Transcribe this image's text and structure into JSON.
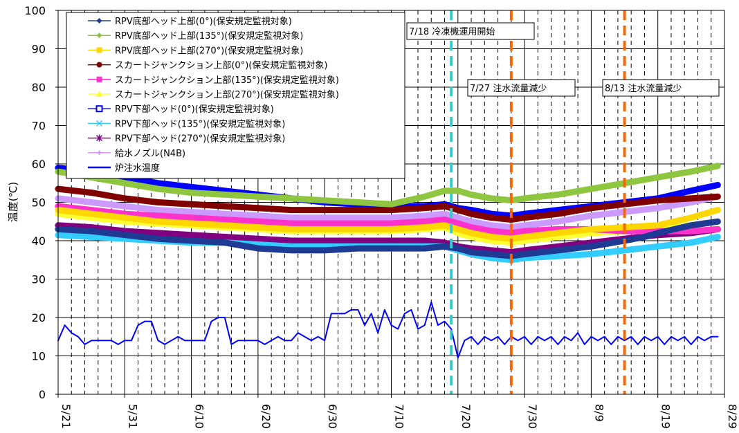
{
  "chart_data": {
    "type": "line",
    "ylabel": "温度(℃)",
    "xlabel": "",
    "title": "",
    "ylim": [
      0,
      100
    ],
    "y_ticks": [
      0,
      10,
      20,
      30,
      40,
      50,
      60,
      70,
      80,
      90,
      100
    ],
    "x_start": "5/21",
    "x_ticks": [
      "5/21",
      "5/31",
      "6/10",
      "6/20",
      "6/30",
      "7/10",
      "7/20",
      "7/30",
      "8/9",
      "8/19",
      "8/29"
    ],
    "x_tick_days": [
      0,
      10,
      20,
      30,
      40,
      50,
      60,
      70,
      80,
      90,
      100
    ],
    "grid": {
      "major_y": true,
      "major_x": true,
      "minor_x_dashed": true
    },
    "legend_position": "top-left",
    "series": [
      {
        "name": "RPV底部ヘッド上部(0°)(保安規定監視対象)",
        "color": "#1f3a93",
        "marker": "diamond",
        "x": [
          0,
          5,
          10,
          15,
          20,
          25,
          30,
          35,
          40,
          45,
          50,
          55,
          58,
          60,
          62,
          65,
          68,
          70,
          75,
          80,
          85,
          88,
          90,
          95,
          99
        ],
        "y": [
          43,
          42.5,
          41.5,
          40.5,
          40,
          39.5,
          38,
          37.5,
          37.5,
          38,
          38,
          38,
          38.5,
          38,
          37,
          36.5,
          36,
          36.5,
          37.5,
          38.5,
          40,
          41,
          42,
          44,
          45
        ]
      },
      {
        "name": "RPV底部ヘッド上部(135°)(保安規定監視対象)",
        "color": "#8ec63f",
        "marker": "diamond",
        "x": [
          0,
          5,
          10,
          15,
          20,
          25,
          30,
          35,
          40,
          45,
          50,
          55,
          58,
          60,
          62,
          65,
          68,
          70,
          75,
          80,
          85,
          90,
          95,
          99
        ],
        "y": [
          58,
          56.5,
          55,
          53.5,
          52.5,
          52,
          51.5,
          51,
          50.5,
          50,
          49.5,
          51.5,
          53,
          53,
          52,
          51,
          50.5,
          51,
          52,
          53.5,
          55,
          56.5,
          58,
          59.5
        ]
      },
      {
        "name": "RPV底部ヘッド上部(270°)(保安規定監視対象)",
        "color": "#ffd700",
        "marker": "square",
        "x": [
          0,
          5,
          10,
          15,
          20,
          25,
          30,
          35,
          40,
          45,
          50,
          55,
          58,
          60,
          62,
          65,
          68,
          70,
          75,
          80,
          85,
          90,
          95,
          99
        ],
        "y": [
          48,
          47,
          46,
          45,
          44.5,
          44,
          43.5,
          43,
          43,
          43,
          43,
          43.5,
          44,
          43,
          42,
          41,
          40.5,
          41,
          42,
          43,
          43.5,
          44,
          46,
          48
        ]
      },
      {
        "name": "スカートジャンクション上部(0°)(保安規定監視対象)",
        "color": "#800000",
        "marker": "circle",
        "x": [
          0,
          5,
          10,
          15,
          20,
          25,
          30,
          35,
          40,
          45,
          50,
          55,
          58,
          60,
          62,
          65,
          68,
          70,
          75,
          80,
          85,
          90,
          95,
          99
        ],
        "y": [
          53.5,
          52.5,
          51,
          50,
          49.5,
          49,
          48.5,
          48,
          48,
          48,
          48,
          48.5,
          49,
          48,
          47,
          46,
          45.5,
          46,
          47,
          48.5,
          49.5,
          50.5,
          51,
          51.5
        ]
      },
      {
        "name": "スカートジャンクション上部(135°)(保安規定監視対象)",
        "color": "#ff33cc",
        "marker": "square",
        "x": [
          0,
          5,
          10,
          15,
          20,
          25,
          30,
          35,
          40,
          45,
          50,
          55,
          58,
          60,
          62,
          65,
          68,
          70,
          75,
          80,
          85,
          90,
          95,
          99
        ],
        "y": [
          49,
          48,
          47,
          46.5,
          46,
          45.5,
          45,
          44.5,
          44.5,
          44.5,
          44.5,
          45,
          45.5,
          44.5,
          43.5,
          42.5,
          42,
          42.5,
          43,
          43,
          42.5,
          42.5,
          42.5,
          43
        ]
      },
      {
        "name": "スカートジャンクション上部(270°)(保安規定監視対象)",
        "color": "#ffff33",
        "marker": "triangle",
        "x": [
          0,
          5,
          10,
          15,
          20,
          25,
          30,
          35,
          40,
          45,
          50,
          55,
          58,
          60,
          62,
          65,
          68,
          70,
          75,
          80,
          85,
          90,
          95,
          99
        ],
        "y": [
          47,
          46,
          45,
          44.5,
          44,
          43.5,
          43,
          42.5,
          42.5,
          42.5,
          42.5,
          43,
          43.5,
          42,
          41,
          40,
          39.5,
          40,
          41,
          42,
          42.5,
          43,
          44,
          45
        ]
      },
      {
        "name": "RPV下部ヘッド(0°)(保安規定監視対象)",
        "color": "#0000ff",
        "marker": "open-square",
        "x": [
          0,
          5,
          10,
          15,
          20,
          25,
          30,
          35,
          40,
          45,
          50,
          55,
          58,
          60,
          62,
          65,
          68,
          70,
          75,
          80,
          85,
          90,
          95,
          99
        ],
        "y": [
          59,
          58,
          56.5,
          55,
          54,
          53,
          52,
          51,
          50,
          49.5,
          49,
          49,
          49.5,
          48.5,
          48,
          47,
          46.5,
          47,
          48,
          49,
          50,
          51,
          53,
          54.5
        ]
      },
      {
        "name": "RPV下部ヘッド(135°)(保安規定監視対象)",
        "color": "#33ccff",
        "marker": "x",
        "x": [
          0,
          5,
          10,
          15,
          20,
          25,
          30,
          35,
          40,
          45,
          50,
          55,
          58,
          60,
          62,
          65,
          68,
          70,
          75,
          80,
          85,
          90,
          95,
          99
        ],
        "y": [
          41.5,
          41,
          40.5,
          40,
          39.5,
          39.5,
          39,
          38.5,
          38.5,
          38.5,
          38.5,
          38.5,
          38.5,
          37.5,
          36.5,
          35.5,
          35,
          35.5,
          36,
          36.5,
          37.5,
          38.5,
          39.5,
          41
        ]
      },
      {
        "name": "RPV下部ヘッド(270°)(保安規定監視対象)",
        "color": "#800080",
        "marker": "star",
        "x": [
          0,
          5,
          10,
          15,
          20,
          25,
          30,
          35,
          40,
          45,
          50,
          55,
          58,
          60,
          62,
          65,
          68,
          70,
          75,
          80,
          85,
          90,
          95,
          99
        ],
        "y": [
          44,
          43.5,
          42.5,
          42,
          41.5,
          41,
          40.5,
          40,
          40,
          40,
          40,
          40,
          39.5,
          38.5,
          38,
          37.5,
          37,
          37.5,
          38.5,
          39.5,
          40.5,
          41.5,
          42,
          43
        ]
      },
      {
        "name": "給水ノズル(N4B)",
        "color": "#cc99ff",
        "marker": "plus",
        "x": [
          0,
          5,
          10,
          15,
          20,
          25,
          30,
          35,
          40,
          45,
          50,
          55,
          58,
          60,
          62,
          65,
          68,
          70,
          75,
          80,
          85,
          90,
          95,
          99
        ],
        "y": [
          51,
          50,
          49,
          48,
          47.5,
          47,
          46.5,
          46,
          46,
          46,
          46,
          46.5,
          47,
          46,
          45,
          44,
          43.5,
          44,
          45,
          46.5,
          47.5,
          48.5,
          50,
          51.5
        ]
      },
      {
        "name": "炉注水温度",
        "color": "#0000ff",
        "marker": "none",
        "x": [
          0,
          1,
          2,
          3,
          4,
          5,
          6,
          7,
          8,
          9,
          10,
          11,
          12,
          13,
          14,
          15,
          16,
          17,
          18,
          19,
          20,
          21,
          22,
          23,
          24,
          25,
          26,
          27,
          28,
          29,
          30,
          31,
          32,
          33,
          34,
          35,
          36,
          37,
          38,
          39,
          40,
          41,
          42,
          43,
          44,
          45,
          46,
          47,
          48,
          49,
          50,
          51,
          52,
          53,
          54,
          55,
          56,
          57,
          58,
          59,
          60,
          61,
          62,
          63,
          64,
          65,
          66,
          67,
          68,
          69,
          70,
          71,
          72,
          73,
          74,
          75,
          76,
          77,
          78,
          79,
          80,
          81,
          82,
          83,
          84,
          85,
          86,
          87,
          88,
          89,
          90,
          91,
          92,
          93,
          94,
          95,
          96,
          97,
          98,
          99
        ],
        "y": [
          14,
          18,
          16,
          15,
          13,
          14,
          14,
          14,
          14,
          13,
          14,
          14,
          18,
          19,
          19,
          14,
          13,
          14,
          15,
          14,
          14,
          14,
          14,
          19,
          20,
          20,
          13,
          14,
          14,
          14,
          14,
          13,
          14,
          15,
          14,
          14,
          16,
          15,
          14,
          15,
          14,
          21,
          21,
          21,
          22,
          22,
          18,
          21,
          16,
          22,
          18,
          17,
          21,
          22,
          17,
          18,
          24,
          18,
          19,
          17,
          9.5,
          14,
          15,
          13,
          15,
          14,
          15,
          13,
          15,
          14,
          15,
          13,
          15,
          14,
          15,
          13,
          15,
          14,
          16,
          13,
          15,
          14,
          15,
          13,
          15,
          14,
          15,
          13,
          15,
          14,
          15,
          13,
          15,
          14,
          15,
          13,
          15,
          14,
          15,
          15
        ]
      }
    ],
    "vertical_markers": [
      {
        "day": 59,
        "color": "#33cccc",
        "label": "7/18 冷凍機運用開始"
      },
      {
        "day": 68,
        "color": "#ff6600",
        "label": "7/27 注水流量減少"
      },
      {
        "day": 85,
        "color": "#ff6600",
        "label": "8/13 注水流量減少"
      }
    ]
  }
}
